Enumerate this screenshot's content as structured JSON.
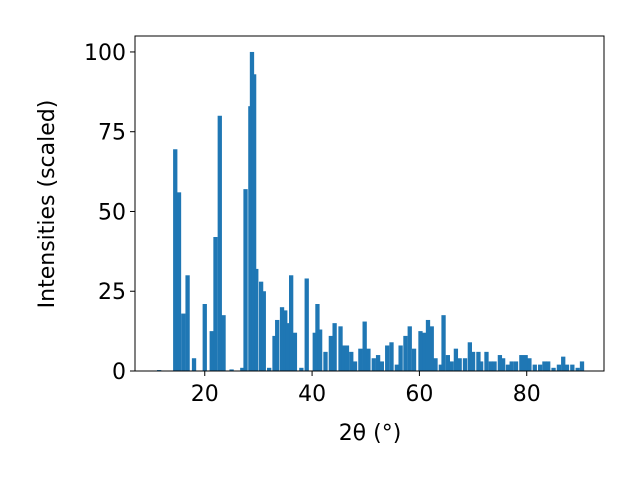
{
  "chart_data": {
    "type": "bar",
    "xlabel": "2θ (°)",
    "ylabel": "Intensities (scaled)",
    "color": "#1f77b4",
    "x": [
      11.5,
      14.5,
      15.2,
      16,
      16.8,
      18,
      20,
      21.3,
      22,
      22.8,
      23.5,
      25,
      27,
      27.6,
      28.5,
      28.8,
      29.2,
      29.6,
      30.5,
      31,
      32,
      33,
      33.5,
      34.4,
      35,
      35.5,
      36.1,
      36.8,
      38,
      39,
      40.5,
      41,
      41.5,
      42.5,
      43.5,
      44.2,
      45.3,
      45.8,
      46.5,
      47.3,
      48,
      49,
      49.8,
      50.5,
      51.5,
      52.3,
      53,
      54,
      54.8,
      55.8,
      56.5,
      57.4,
      58.2,
      59,
      60.2,
      60.9,
      61.6,
      62.3,
      63,
      64,
      64.5,
      65.3,
      66,
      66.8,
      67.5,
      68.5,
      69.4,
      70,
      71,
      71.5,
      72.5,
      73.3,
      74,
      75,
      75.6,
      76.5,
      77.2,
      78,
      79,
      79.8,
      80.5,
      81.5,
      82.5,
      83.3,
      84,
      85,
      86,
      86.8,
      87.5,
      88.5,
      89.5,
      90.3
    ],
    "values": [
      0.3,
      69.5,
      56,
      18,
      30,
      4,
      21,
      12.5,
      42,
      80,
      17.5,
      0.5,
      1,
      57,
      83,
      100,
      93,
      32,
      28,
      25,
      1,
      11,
      16,
      20,
      19,
      15,
      30,
      12,
      1,
      29,
      12,
      21,
      13,
      6,
      11,
      15,
      14,
      8,
      8,
      6,
      3,
      7,
      15.5,
      7,
      4,
      5,
      3,
      8,
      9,
      2,
      8,
      11,
      14,
      7,
      12.5,
      12,
      16,
      14,
      4,
      2,
      17.5,
      5,
      3,
      7,
      4,
      4,
      9,
      6,
      6,
      3,
      6,
      3,
      3,
      5,
      4,
      2,
      3,
      3,
      5,
      5,
      4,
      2,
      2,
      3,
      3,
      1,
      2,
      4.5,
      2,
      2,
      1,
      3
    ],
    "xlim": [
      7,
      94.4
    ],
    "ylim": [
      0,
      105
    ],
    "xticks": [
      20,
      40,
      60,
      80
    ],
    "yticks": [
      0,
      25,
      50,
      75,
      100
    ]
  }
}
